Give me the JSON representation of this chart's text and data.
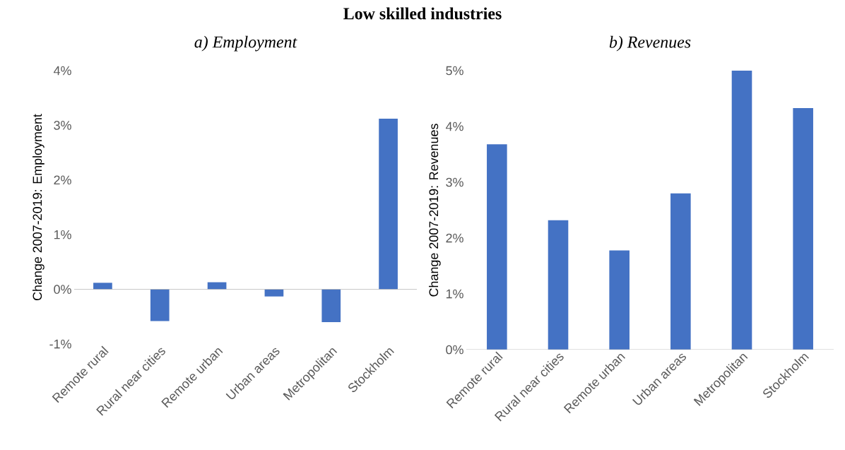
{
  "chart_data": [
    {
      "type": "bar",
      "title": "Low skilled industries",
      "subtitle": "a) Employment",
      "ylabel": "Change 2007-2019: Employment",
      "categories": [
        "Remote rural",
        "Rural near cities",
        "Remote urban",
        "Urban areas",
        "Metropolitan",
        "Stockholm"
      ],
      "values": [
        0.12,
        -0.58,
        0.13,
        -0.13,
        -0.6,
        3.12
      ],
      "color": "#4472c4",
      "ylim": [
        -1,
        4
      ],
      "yticks": [
        {
          "value": -1,
          "label": "-1%"
        },
        {
          "value": 0,
          "label": "0%"
        },
        {
          "value": 1,
          "label": "1%"
        },
        {
          "value": 2,
          "label": "2%"
        },
        {
          "value": 3,
          "label": "3%"
        },
        {
          "value": 4,
          "label": "4%"
        }
      ]
    },
    {
      "type": "bar",
      "subtitle": "b) Revenues",
      "ylabel": "Change 2007-2019: Revenues",
      "categories": [
        "Remote rural",
        "Rural near cities",
        "Remote urban",
        "Urban areas",
        "Metropolitan",
        "Stockholm"
      ],
      "values": [
        3.68,
        2.32,
        1.78,
        2.8,
        5.0,
        4.33
      ],
      "color": "#4472c4",
      "ylim": [
        0,
        5
      ],
      "yticks": [
        {
          "value": 0,
          "label": "0%"
        },
        {
          "value": 1,
          "label": "1%"
        },
        {
          "value": 2,
          "label": "2%"
        },
        {
          "value": 3,
          "label": "3%"
        },
        {
          "value": 4,
          "label": "4%"
        },
        {
          "value": 5,
          "label": "5%"
        }
      ]
    }
  ]
}
